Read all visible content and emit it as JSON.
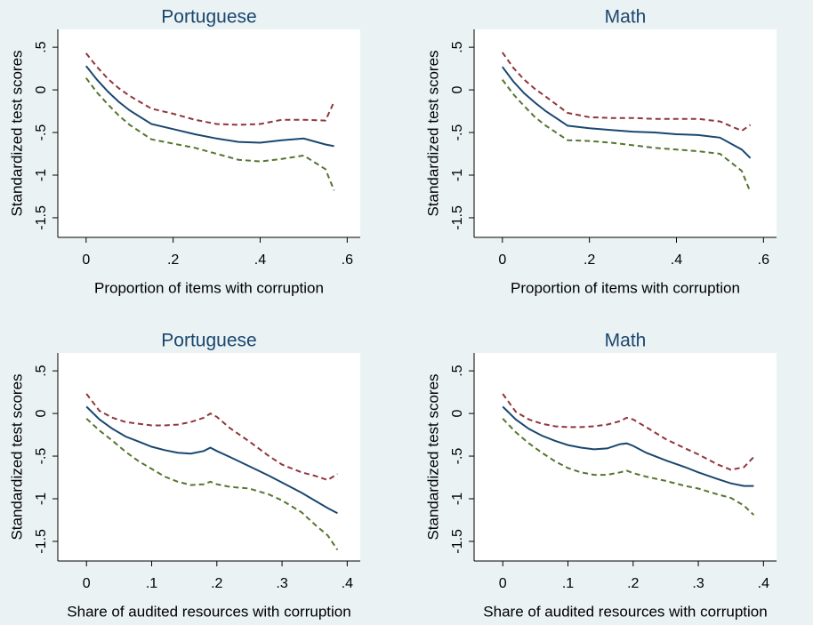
{
  "chart_data": [
    {
      "type": "line",
      "title": "Portuguese",
      "x_label": "Proportion of items with corruption",
      "y_label": "Standardized test scores",
      "x": [
        0,
        0.025,
        0.05,
        0.075,
        0.1,
        0.15,
        0.2,
        0.25,
        0.3,
        0.35,
        0.4,
        0.45,
        0.5,
        0.55,
        0.57
      ],
      "series": [
        {
          "color": "#90353b",
          "dashed": true,
          "values": [
            0.43,
            0.27,
            0.13,
            0.02,
            -0.07,
            -0.22,
            -0.28,
            -0.35,
            -0.4,
            -0.41,
            -0.4,
            -0.35,
            -0.35,
            -0.36,
            -0.14
          ]
        },
        {
          "color": "#1a476f",
          "dashed": false,
          "values": [
            0.28,
            0.12,
            -0.02,
            -0.14,
            -0.24,
            -0.4,
            -0.46,
            -0.52,
            -0.57,
            -0.61,
            -0.62,
            -0.59,
            -0.57,
            -0.64,
            -0.66
          ]
        },
        {
          "color": "#55752f",
          "dashed": true,
          "values": [
            0.14,
            -0.03,
            -0.17,
            -0.3,
            -0.41,
            -0.58,
            -0.63,
            -0.68,
            -0.75,
            -0.82,
            -0.84,
            -0.81,
            -0.77,
            -0.93,
            -1.18
          ]
        }
      ],
      "xlim": [
        -0.065,
        0.63
      ],
      "ylim": [
        -1.73,
        0.71
      ],
      "xticks": [
        0,
        {
          "value": 0.2,
          "label": ".2"
        },
        {
          "value": 0.4,
          "label": ".4"
        },
        {
          "value": 0.6,
          "label": ".6"
        }
      ],
      "yticks": [
        {
          "value": 0.5,
          "label": ".5"
        },
        0,
        {
          "value": -0.5,
          "label": "-.5"
        },
        -1,
        -1.5
      ]
    },
    {
      "type": "line",
      "title": "Math",
      "x_label": "Proportion of items with corruption",
      "y_label": "Standardized test scores",
      "x": [
        0,
        0.025,
        0.05,
        0.075,
        0.1,
        0.15,
        0.2,
        0.25,
        0.3,
        0.35,
        0.4,
        0.45,
        0.5,
        0.55,
        0.57
      ],
      "series": [
        {
          "color": "#90353b",
          "dashed": true,
          "values": [
            0.44,
            0.26,
            0.12,
            0.01,
            -0.08,
            -0.27,
            -0.32,
            -0.33,
            -0.33,
            -0.34,
            -0.34,
            -0.34,
            -0.37,
            -0.48,
            -0.41
          ]
        },
        {
          "color": "#1a476f",
          "dashed": false,
          "values": [
            0.27,
            0.1,
            -0.04,
            -0.15,
            -0.25,
            -0.42,
            -0.45,
            -0.47,
            -0.49,
            -0.5,
            -0.52,
            -0.53,
            -0.56,
            -0.7,
            -0.8
          ]
        },
        {
          "color": "#55752f",
          "dashed": true,
          "values": [
            0.12,
            -0.05,
            -0.19,
            -0.32,
            -0.42,
            -0.59,
            -0.6,
            -0.62,
            -0.65,
            -0.68,
            -0.7,
            -0.72,
            -0.75,
            -0.95,
            -1.2
          ]
        }
      ],
      "xlim": [
        -0.065,
        0.63
      ],
      "ylim": [
        -1.73,
        0.71
      ],
      "xticks": [
        0,
        {
          "value": 0.2,
          "label": ".2"
        },
        {
          "value": 0.4,
          "label": ".4"
        },
        {
          "value": 0.6,
          "label": ".6"
        }
      ],
      "yticks": [
        {
          "value": 0.5,
          "label": ".5"
        },
        0,
        {
          "value": -0.5,
          "label": "-.5"
        },
        -1,
        -1.5
      ]
    },
    {
      "type": "line",
      "title": "Portuguese",
      "x_label": "Share of audited resources with corruption",
      "y_label": "Standardized test scores",
      "x": [
        0,
        0.02,
        0.04,
        0.06,
        0.08,
        0.1,
        0.12,
        0.14,
        0.16,
        0.18,
        0.19,
        0.2,
        0.22,
        0.25,
        0.28,
        0.3,
        0.33,
        0.35,
        0.37,
        0.385
      ],
      "series": [
        {
          "color": "#90353b",
          "dashed": true,
          "values": [
            0.23,
            0.03,
            -0.05,
            -0.1,
            -0.12,
            -0.14,
            -0.14,
            -0.13,
            -0.1,
            -0.05,
            0,
            -0.04,
            -0.17,
            -0.33,
            -0.5,
            -0.6,
            -0.69,
            -0.73,
            -0.78,
            -0.71
          ]
        },
        {
          "color": "#1a476f",
          "dashed": false,
          "values": [
            0.08,
            -0.07,
            -0.18,
            -0.27,
            -0.33,
            -0.39,
            -0.43,
            -0.46,
            -0.47,
            -0.44,
            -0.4,
            -0.44,
            -0.51,
            -0.62,
            -0.73,
            -0.81,
            -0.93,
            -1.02,
            -1.11,
            -1.17
          ]
        },
        {
          "color": "#55752f",
          "dashed": true,
          "values": [
            -0.06,
            -0.2,
            -0.32,
            -0.45,
            -0.56,
            -0.65,
            -0.74,
            -0.8,
            -0.84,
            -0.83,
            -0.8,
            -0.83,
            -0.86,
            -0.88,
            -0.95,
            -1.02,
            -1.16,
            -1.3,
            -1.43,
            -1.6
          ]
        }
      ],
      "xlim": [
        -0.044,
        0.42
      ],
      "ylim": [
        -1.73,
        0.71
      ],
      "xticks": [
        0,
        {
          "value": 0.1,
          "label": ".1"
        },
        {
          "value": 0.2,
          "label": ".2"
        },
        {
          "value": 0.3,
          "label": ".3"
        },
        {
          "value": 0.4,
          "label": ".4"
        }
      ],
      "yticks": [
        {
          "value": 0.5,
          "label": ".5"
        },
        0,
        {
          "value": -0.5,
          "label": "-.5"
        },
        -1,
        -1.5
      ]
    },
    {
      "type": "line",
      "title": "Math",
      "x_label": "Share of audited resources with corruption",
      "y_label": "Standardized test scores",
      "x": [
        0,
        0.02,
        0.04,
        0.06,
        0.08,
        0.1,
        0.12,
        0.14,
        0.16,
        0.18,
        0.19,
        0.2,
        0.22,
        0.25,
        0.28,
        0.3,
        0.33,
        0.35,
        0.37,
        0.385
      ],
      "series": [
        {
          "color": "#90353b",
          "dashed": true,
          "values": [
            0.23,
            0.02,
            -0.07,
            -0.12,
            -0.15,
            -0.16,
            -0.16,
            -0.15,
            -0.13,
            -0.09,
            -0.05,
            -0.07,
            -0.16,
            -0.3,
            -0.41,
            -0.48,
            -0.6,
            -0.66,
            -0.63,
            -0.51
          ]
        },
        {
          "color": "#1a476f",
          "dashed": false,
          "values": [
            0.08,
            -0.07,
            -0.18,
            -0.26,
            -0.32,
            -0.37,
            -0.4,
            -0.42,
            -0.41,
            -0.36,
            -0.35,
            -0.38,
            -0.46,
            -0.55,
            -0.63,
            -0.69,
            -0.77,
            -0.82,
            -0.85,
            -0.85
          ]
        },
        {
          "color": "#55752f",
          "dashed": true,
          "values": [
            -0.06,
            -0.22,
            -0.35,
            -0.46,
            -0.56,
            -0.64,
            -0.69,
            -0.72,
            -0.72,
            -0.69,
            -0.67,
            -0.7,
            -0.74,
            -0.79,
            -0.85,
            -0.88,
            -0.95,
            -0.99,
            -1.08,
            -1.19
          ]
        }
      ],
      "xlim": [
        -0.044,
        0.42
      ],
      "ylim": [
        -1.73,
        0.71
      ],
      "xticks": [
        0,
        {
          "value": 0.1,
          "label": ".1"
        },
        {
          "value": 0.2,
          "label": ".2"
        },
        {
          "value": 0.3,
          "label": ".3"
        },
        {
          "value": 0.4,
          "label": ".4"
        }
      ],
      "yticks": [
        {
          "value": 0.5,
          "label": ".5"
        },
        0,
        {
          "value": -0.5,
          "label": "-.5"
        },
        -1,
        -1.5
      ]
    }
  ]
}
